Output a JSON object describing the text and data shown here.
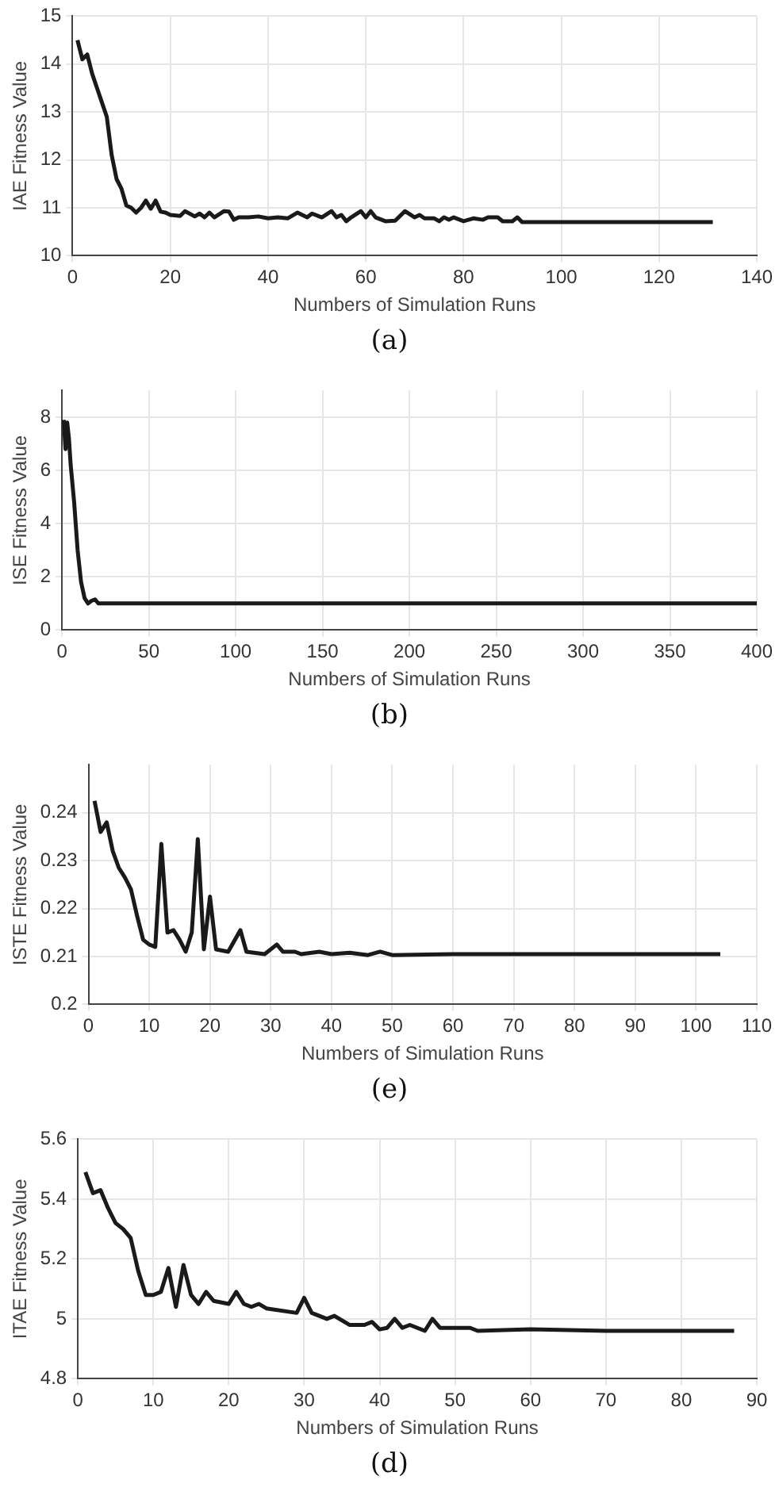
{
  "chart_data": [
    {
      "type": "line",
      "xlabel": "Numbers of Simulation Runs",
      "ylabel": "IAE Fitness Value",
      "color": "#1a1a1a",
      "grid": true,
      "xlim": [
        0,
        140
      ],
      "xticks": [
        0,
        20,
        40,
        60,
        80,
        100,
        120,
        140
      ],
      "ylim": [
        10,
        15
      ],
      "yticks": [
        10,
        11,
        12,
        13,
        14,
        15
      ],
      "annotations": [
        "(a)"
      ],
      "x": [
        1,
        2,
        3,
        4,
        5,
        6,
        7,
        8,
        9,
        10,
        11,
        12,
        13,
        14,
        15,
        16,
        17,
        18,
        19,
        20,
        22,
        23,
        25,
        26,
        27,
        28,
        29,
        31,
        32,
        33,
        34,
        36,
        38,
        40,
        42,
        44,
        46,
        48,
        49,
        51,
        53,
        54,
        55,
        56,
        57,
        59,
        60,
        61,
        62,
        64,
        66,
        68,
        70,
        71,
        72,
        74,
        75,
        76,
        77,
        78,
        80,
        82,
        84,
        85,
        87,
        88,
        90,
        91,
        92,
        100,
        110,
        120,
        131
      ],
      "values": [
        14.5,
        14.1,
        14.2,
        13.8,
        13.5,
        13.2,
        12.9,
        12.1,
        11.6,
        11.4,
        11.05,
        11.0,
        10.9,
        11.0,
        11.15,
        10.98,
        11.15,
        10.92,
        10.9,
        10.85,
        10.83,
        10.93,
        10.82,
        10.88,
        10.8,
        10.9,
        10.8,
        10.93,
        10.92,
        10.75,
        10.8,
        10.8,
        10.82,
        10.78,
        10.8,
        10.78,
        10.9,
        10.8,
        10.88,
        10.8,
        10.93,
        10.8,
        10.85,
        10.72,
        10.8,
        10.93,
        10.8,
        10.93,
        10.8,
        10.72,
        10.73,
        10.93,
        10.8,
        10.85,
        10.78,
        10.78,
        10.72,
        10.8,
        10.75,
        10.8,
        10.72,
        10.78,
        10.75,
        10.8,
        10.8,
        10.72,
        10.72,
        10.8,
        10.7,
        10.7,
        10.7,
        10.7,
        10.7
      ]
    },
    {
      "type": "line",
      "xlabel": "Numbers of Simulation Runs",
      "ylabel": "ISE Fitness Value",
      "color": "#1a1a1a",
      "grid": true,
      "xlim": [
        0,
        400
      ],
      "xticks": [
        0,
        50,
        100,
        150,
        200,
        250,
        300,
        350,
        400
      ],
      "ylim": [
        0,
        9
      ],
      "yticks": [
        0,
        2,
        4,
        6,
        8
      ],
      "annotations": [
        "(b)"
      ],
      "x": [
        1,
        2,
        3,
        4,
        5,
        7,
        9,
        11,
        13,
        15,
        17,
        19,
        21,
        25,
        50,
        100,
        150,
        200,
        250,
        300,
        350,
        400
      ],
      "values": [
        7.9,
        6.8,
        7.8,
        7.2,
        6.2,
        4.8,
        3.0,
        1.8,
        1.2,
        1.0,
        1.1,
        1.15,
        1.0,
        1.0,
        1.0,
        1.0,
        1.0,
        1.0,
        1.0,
        1.0,
        1.0,
        1.0
      ]
    },
    {
      "type": "line",
      "xlabel": "Numbers of Simulation Runs",
      "ylabel": "ISTE Fitness Value",
      "color": "#1a1a1a",
      "grid": true,
      "xlim": [
        0,
        110
      ],
      "xticks": [
        0,
        10,
        20,
        30,
        40,
        50,
        60,
        70,
        80,
        90,
        100,
        110
      ],
      "ylim": [
        0.2,
        0.25
      ],
      "yticks": [
        0.2,
        0.21,
        0.22,
        0.23,
        0.24
      ],
      "annotations": [
        "(e)"
      ],
      "x": [
        1,
        2,
        3,
        4,
        5,
        6,
        7,
        8,
        9,
        10,
        11,
        12,
        13,
        14,
        15,
        16,
        17,
        18,
        19,
        20,
        21,
        23,
        25,
        26,
        29,
        31,
        32,
        34,
        35,
        38,
        40,
        43,
        46,
        48,
        50,
        60,
        80,
        90,
        95,
        104
      ],
      "values": [
        0.2425,
        0.236,
        0.238,
        0.232,
        0.2285,
        0.2265,
        0.224,
        0.2185,
        0.2135,
        0.2125,
        0.212,
        0.2335,
        0.215,
        0.2155,
        0.2135,
        0.211,
        0.215,
        0.2345,
        0.2115,
        0.2225,
        0.2115,
        0.211,
        0.2155,
        0.211,
        0.2105,
        0.2125,
        0.211,
        0.211,
        0.2105,
        0.211,
        0.2105,
        0.2108,
        0.2103,
        0.211,
        0.2103,
        0.2105,
        0.2105,
        0.2105,
        0.2105,
        0.2105
      ]
    },
    {
      "type": "line",
      "xlabel": "Numbers of Simulation Runs",
      "ylabel": "ITAE Fitness Value",
      "color": "#1a1a1a",
      "grid": true,
      "xlim": [
        0,
        90
      ],
      "xticks": [
        0,
        10,
        20,
        30,
        40,
        50,
        60,
        70,
        80,
        90
      ],
      "ylim": [
        4.8,
        5.6
      ],
      "yticks": [
        4.8,
        5,
        5.2,
        5.4,
        5.6
      ],
      "annotations": [
        "(d)"
      ],
      "x": [
        1,
        2,
        3,
        4,
        5,
        6,
        7,
        8,
        9,
        10,
        11,
        12,
        13,
        14,
        15,
        16,
        17,
        18,
        20,
        21,
        22,
        23,
        24,
        25,
        29,
        30,
        31,
        33,
        34,
        36,
        38,
        39,
        40,
        41,
        42,
        43,
        44,
        46,
        47,
        48,
        52,
        53,
        60,
        70,
        80,
        87
      ],
      "values": [
        5.49,
        5.42,
        5.43,
        5.37,
        5.32,
        5.3,
        5.27,
        5.16,
        5.08,
        5.08,
        5.09,
        5.17,
        5.04,
        5.18,
        5.08,
        5.05,
        5.09,
        5.06,
        5.05,
        5.09,
        5.05,
        5.04,
        5.05,
        5.035,
        5.02,
        5.07,
        5.02,
        5.0,
        5.01,
        4.98,
        4.98,
        4.99,
        4.965,
        4.97,
        5.0,
        4.97,
        4.98,
        4.96,
        5.0,
        4.97,
        4.97,
        4.96,
        4.965,
        4.96,
        4.96,
        4.96
      ]
    }
  ]
}
